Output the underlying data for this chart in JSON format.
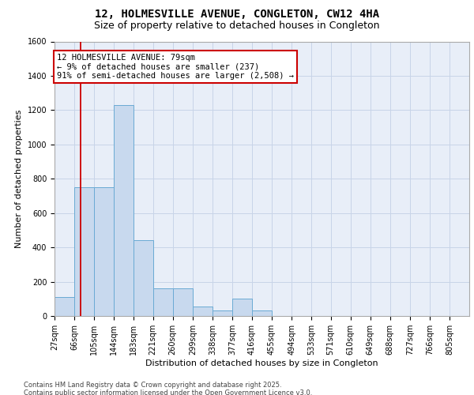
{
  "title_line1": "12, HOLMESVILLE AVENUE, CONGLETON, CW12 4HA",
  "title_line2": "Size of property relative to detached houses in Congleton",
  "xlabel": "Distribution of detached houses by size in Congleton",
  "ylabel": "Number of detached properties",
  "bin_labels": [
    "27sqm",
    "66sqm",
    "105sqm",
    "144sqm",
    "183sqm",
    "221sqm",
    "260sqm",
    "299sqm",
    "338sqm",
    "377sqm",
    "416sqm",
    "455sqm",
    "494sqm",
    "533sqm",
    "571sqm",
    "610sqm",
    "649sqm",
    "688sqm",
    "727sqm",
    "766sqm",
    "805sqm"
  ],
  "bar_values": [
    110,
    750,
    750,
    1230,
    440,
    160,
    160,
    55,
    30,
    100,
    30,
    0,
    0,
    0,
    0,
    0,
    0,
    0,
    0,
    0,
    0
  ],
  "bin_edges": [
    27,
    66,
    105,
    144,
    183,
    221,
    260,
    299,
    338,
    377,
    416,
    455,
    494,
    533,
    571,
    610,
    649,
    688,
    727,
    766,
    805
  ],
  "bar_color": "#c8d9ee",
  "bar_edge_color": "#6aaad4",
  "red_line_x": 79,
  "annotation_text": "12 HOLMESVILLE AVENUE: 79sqm\n← 9% of detached houses are smaller (237)\n91% of semi-detached houses are larger (2,508) →",
  "annotation_box_color": "#ffffff",
  "annotation_edge_color": "#cc0000",
  "grid_color": "#c8d4e8",
  "background_color": "#e8eef8",
  "ylim": [
    0,
    1600
  ],
  "yticks": [
    0,
    200,
    400,
    600,
    800,
    1000,
    1200,
    1400,
    1600
  ],
  "footer_text": "Contains HM Land Registry data © Crown copyright and database right 2025.\nContains public sector information licensed under the Open Government Licence v3.0.",
  "title_fontsize": 10,
  "subtitle_fontsize": 9,
  "axis_label_fontsize": 8,
  "tick_fontsize": 7,
  "annotation_fontsize": 7.5
}
